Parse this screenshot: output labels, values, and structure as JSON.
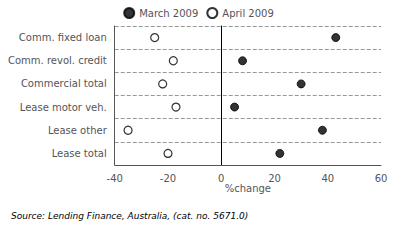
{
  "chart_data": {
    "type": "dot",
    "categories": [
      "Comm. fixed loan",
      "Comm. revol. credit",
      "Commercial total",
      "Lease motor veh.",
      "Lease other",
      "Lease total"
    ],
    "series": [
      {
        "name": "March 2009",
        "color": "#000000",
        "marker": "filled",
        "values": [
          43,
          8,
          30,
          5,
          38,
          22
        ]
      },
      {
        "name": "April 2009",
        "color": "#000000",
        "marker": "open",
        "values": [
          -25,
          -18,
          -22,
          -17,
          -35,
          -20
        ]
      }
    ],
    "xlabel": "%change",
    "xlim": [
      -40,
      60
    ],
    "xticks": [
      -40,
      -20,
      0,
      20,
      40,
      60
    ],
    "grid": true,
    "legend": "top",
    "annotations": [
      "Source: Lending Finance, Australia, (cat. no. 5671.0)"
    ]
  }
}
